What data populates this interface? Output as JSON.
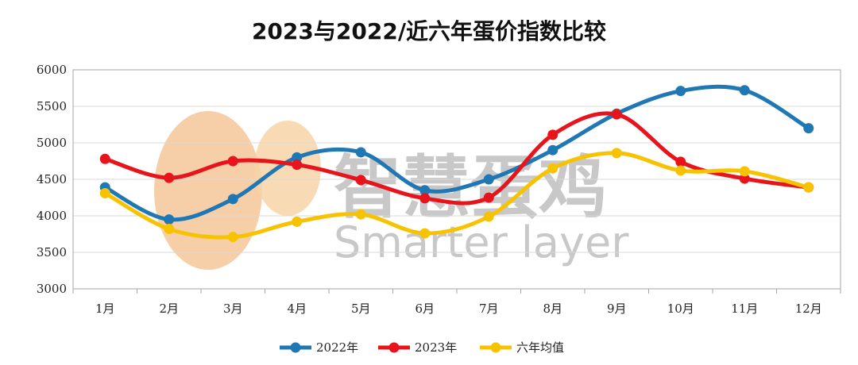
{
  "chart_data": {
    "type": "line",
    "title": "2023与2022/近六年蛋价指数比较",
    "categories": [
      "1月",
      "2月",
      "3月",
      "4月",
      "5月",
      "6月",
      "7月",
      "8月",
      "9月",
      "10月",
      "11月",
      "12月"
    ],
    "ylim": [
      3000,
      6000
    ],
    "yticks": [
      3000,
      3500,
      4000,
      4500,
      5000,
      5500,
      6000
    ],
    "grid": true,
    "legend_position": "bottom",
    "series": [
      {
        "name": "2022年",
        "color": "#1f77b4",
        "values": [
          4390,
          3950,
          4230,
          4800,
          4870,
          4350,
          4500,
          4900,
          5400,
          5710,
          5720,
          5200
        ]
      },
      {
        "name": "2023年",
        "color": "#e8141c",
        "values": [
          4780,
          4520,
          4750,
          4700,
          4490,
          4240,
          4250,
          5110,
          5390,
          4740,
          4510,
          4390
        ]
      },
      {
        "name": "六年均值",
        "color": "#f7c300",
        "values": [
          4310,
          3820,
          3710,
          3920,
          4020,
          3760,
          3990,
          4650,
          4860,
          4620,
          4610,
          4390
        ]
      }
    ]
  },
  "watermark": {
    "cn": "智慧蛋鸡",
    "en": "Smarter layer"
  }
}
